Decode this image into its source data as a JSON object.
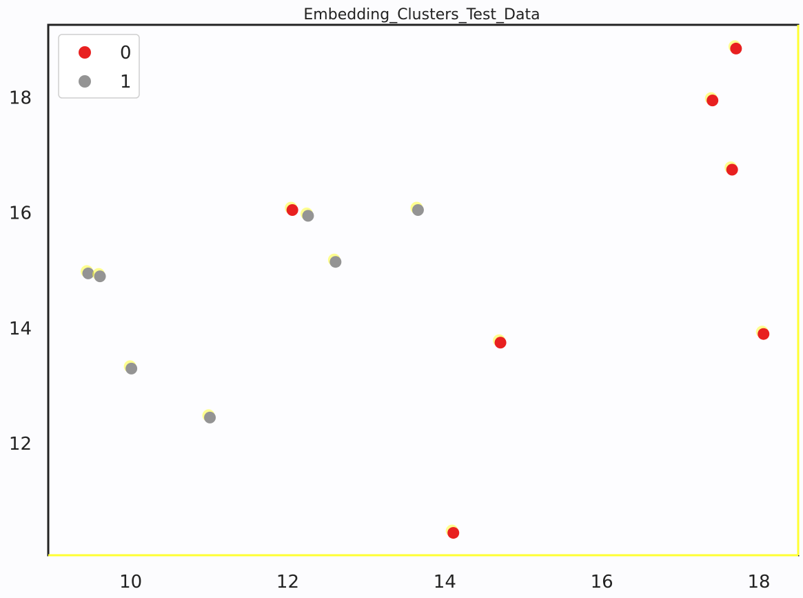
{
  "chart_data": {
    "type": "scatter",
    "title": "Embedding_Clusters_Test_Data",
    "xlabel": "",
    "ylabel": "",
    "xlim": [
      8.95,
      18.5
    ],
    "ylim": [
      10.05,
      19.25
    ],
    "x_ticks": [
      10,
      12,
      14,
      16,
      18
    ],
    "x_tick_labels": [
      "10",
      "12",
      "14",
      "16",
      "18"
    ],
    "y_ticks": [
      12,
      14,
      16,
      18
    ],
    "y_tick_labels": [
      "12",
      "14",
      "16",
      "18"
    ],
    "grid": false,
    "legend_position": "top-left",
    "series": [
      {
        "name": "0",
        "color": "#e82020",
        "points": [
          {
            "x": 17.7,
            "y": 18.85
          },
          {
            "x": 17.4,
            "y": 17.95
          },
          {
            "x": 17.65,
            "y": 16.75
          },
          {
            "x": 12.05,
            "y": 16.05
          },
          {
            "x": 14.7,
            "y": 13.75
          },
          {
            "x": 18.05,
            "y": 13.9
          },
          {
            "x": 14.1,
            "y": 10.45
          }
        ]
      },
      {
        "name": "1",
        "color": "#949494",
        "points": [
          {
            "x": 9.45,
            "y": 14.95
          },
          {
            "x": 9.6,
            "y": 14.9
          },
          {
            "x": 12.25,
            "y": 15.95
          },
          {
            "x": 13.65,
            "y": 16.05
          },
          {
            "x": 12.6,
            "y": 15.15
          },
          {
            "x": 10.0,
            "y": 13.3
          },
          {
            "x": 11.0,
            "y": 12.45
          }
        ]
      }
    ],
    "highlight_color": "#ffff33"
  }
}
